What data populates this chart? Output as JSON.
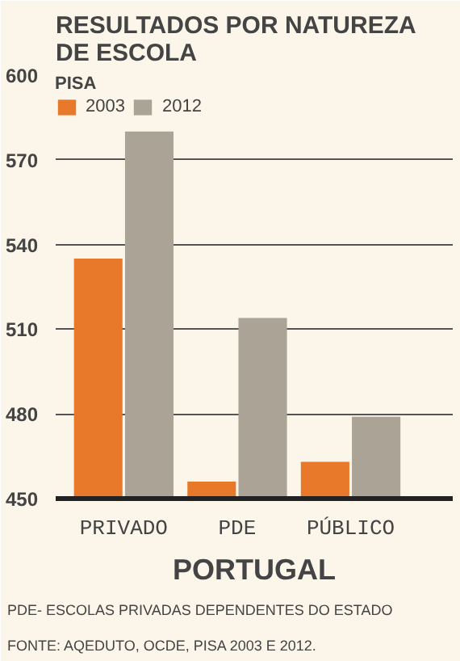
{
  "chart_data": {
    "type": "bar",
    "title": "RESULTADOS POR NATUREZA\nDE ESCOLA",
    "xlabel": "PORTUGAL",
    "legend_title": "PISA",
    "categories": [
      "PRIVADO",
      "PDE",
      "PÚBLICO"
    ],
    "series": [
      {
        "name": "2003",
        "color": "#e8782a",
        "values": [
          535,
          456,
          463
        ]
      },
      {
        "name": "2012",
        "color": "#aaa396",
        "values": [
          580,
          514,
          479
        ]
      }
    ],
    "ylim": [
      450,
      600
    ],
    "yticks": [
      450,
      480,
      510,
      540,
      570,
      600
    ],
    "grid": "y",
    "legend": "top left",
    "annotations": [
      "PDE- ESCOLAS PRIVADAS DEPENDENTES DO ESTADO",
      "FONTE: AQEDUTO, OCDE, PISA 2003 E 2012."
    ]
  }
}
